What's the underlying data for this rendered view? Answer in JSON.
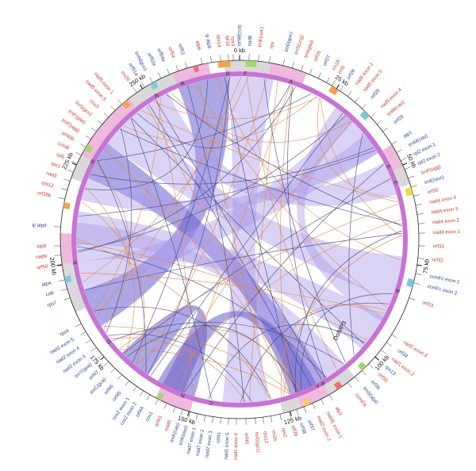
{
  "colors": {
    "plus_strand_gene": "#c0392b",
    "minus_strand_gene": "#2a3f8f",
    "backbone": "#c774d3",
    "forward_repeat": "#ad9ee8",
    "reverse_repeat": "#6a5fd0",
    "short_link_orange": "#e0874a",
    "short_link_blue": "#41467f",
    "segment_pink": "#efb9dd",
    "segment_grey": "#d9d9d9"
  },
  "scale_labels": [
    "0 kb",
    "25 kb",
    "50 kb",
    "75 kb",
    "100 kb",
    "125 kb",
    "150 kb",
    "175 kb",
    "200 kb",
    "225 kb",
    "250 kb"
  ],
  "region_labels": [
    "A",
    "B",
    "C",
    "D",
    "E",
    "F",
    "R",
    "R",
    "R",
    "R",
    "R",
    "R",
    "A",
    "E",
    "R"
  ],
  "callout": "DolMP3",
  "genes": [
    {
      "angle": 0,
      "label": "trnW(cca)",
      "color": "blue"
    },
    {
      "angle": 3,
      "label": "nad6",
      "color": "blue"
    },
    {
      "angle": 6,
      "label": "trnE(uuc)",
      "color": "red"
    },
    {
      "angle": 9.5,
      "label": "rps",
      "color": "red"
    },
    {
      "angle": 14,
      "label": "trnD(guc)",
      "color": "blue"
    },
    {
      "angle": 17,
      "label": "trnS(ucg)",
      "color": "red"
    },
    {
      "angle": 20,
      "label": "trnI(gau)",
      "color": "red"
    },
    {
      "angle": 23,
      "label": "orf26",
      "color": "red"
    },
    {
      "angle": 26,
      "label": "orf27",
      "color": "blue"
    },
    {
      "angle": 29,
      "label": "rrn18",
      "color": "red"
    },
    {
      "angle": 31,
      "label": "rrn5",
      "color": "red"
    },
    {
      "angle": 34,
      "label": "orf28",
      "color": "blue"
    },
    {
      "angle": 37,
      "label": "nad5 exon 2",
      "color": "red"
    },
    {
      "angle": 40,
      "label": "nad5 exon 3",
      "color": "red"
    },
    {
      "angle": 43,
      "label": "orf29",
      "color": "blue"
    },
    {
      "angle": 47,
      "label": "nad5 exon 4",
      "color": "red"
    },
    {
      "angle": 50,
      "label": "trnM(cau)",
      "color": "red"
    },
    {
      "angle": 53,
      "label": "orf29",
      "color": "blue"
    },
    {
      "angle": 58,
      "label": "atp1",
      "color": "blue"
    },
    {
      "angle": 61,
      "label": "trnM(cau)",
      "color": "blue"
    },
    {
      "angle": 64,
      "label": "rpl2 exon 1",
      "color": "blue"
    },
    {
      "angle": 67,
      "label": "rpl2 exon 2",
      "color": "blue"
    },
    {
      "angle": 70,
      "label": "trnP(ugg)",
      "color": "red"
    },
    {
      "angle": 73,
      "label": "trnE(uuc)",
      "color": "blue"
    },
    {
      "angle": 76,
      "label": "orf30",
      "color": "red"
    },
    {
      "angle": 79,
      "label": "nad4 exon 4",
      "color": "red"
    },
    {
      "angle": 82,
      "label": "nad4 exon 3",
      "color": "red"
    },
    {
      "angle": 85,
      "label": "nad4 exon 2",
      "color": "red"
    },
    {
      "angle": 88,
      "label": "nad4 exon 1",
      "color": "red"
    },
    {
      "angle": 92,
      "label": "orf31",
      "color": "red"
    },
    {
      "angle": 96,
      "label": "orf32",
      "color": "red"
    },
    {
      "angle": 101,
      "label": "ccmFc exon 1",
      "color": "blue"
    },
    {
      "angle": 104,
      "label": "ccmFc exon 2",
      "color": "blue"
    },
    {
      "angle": 109,
      "label": "orf33",
      "color": "red"
    },
    {
      "angle": 122,
      "label": "nad1 exon 3",
      "color": "red"
    },
    {
      "angle": 125,
      "label": "orf34",
      "color": "blue"
    },
    {
      "angle": 128,
      "label": "nad1 exon 2",
      "color": "red"
    },
    {
      "angle": 131,
      "label": "rps13",
      "color": "blue"
    },
    {
      "angle": 134,
      "label": "orf35",
      "color": "red"
    },
    {
      "angle": 137,
      "label": "orf36",
      "color": "blue"
    },
    {
      "angle": 140,
      "label": "trnS(uga)",
      "color": "blue"
    },
    {
      "angle": 143,
      "label": "ccmFN",
      "color": "red"
    },
    {
      "angle": 150,
      "label": "atp1",
      "color": "red"
    },
    {
      "angle": 153,
      "label": "nad4L exon 1",
      "color": "red"
    },
    {
      "angle": 156,
      "label": "nad2 exon 2",
      "color": "red"
    },
    {
      "angle": 159,
      "label": "orf37",
      "color": "blue"
    },
    {
      "angle": 161.5,
      "label": "orf38",
      "color": "blue"
    },
    {
      "angle": 164,
      "label": "orf39",
      "color": "red"
    },
    {
      "angle": 167,
      "label": "rps2",
      "color": "red"
    },
    {
      "angle": 170,
      "label": "rrn26",
      "color": "red"
    },
    {
      "angle": 172.5,
      "label": "rps12",
      "color": "red"
    },
    {
      "angle": 175,
      "label": "trnG(gcc)",
      "color": "red"
    },
    {
      "angle": 178,
      "label": "orf40",
      "color": "red"
    },
    {
      "angle": 181,
      "label": "nad1 exon 4",
      "color": "red"
    },
    {
      "angle": 183.5,
      "label": "nad1 exon 5",
      "color": "blue"
    },
    {
      "angle": 186,
      "label": "orf41",
      "color": "blue"
    },
    {
      "angle": 188.5,
      "label": "nad7 exon 3",
      "color": "blue"
    },
    {
      "angle": 191,
      "label": "nad7 exon 2",
      "color": "blue"
    },
    {
      "angle": 193.5,
      "label": "nad7 exon 1",
      "color": "blue"
    },
    {
      "angle": 196,
      "label": "trnK(uuu)",
      "color": "blue"
    },
    {
      "angle": 198.5,
      "label": "trnK(cau)",
      "color": "blue"
    },
    {
      "angle": 201,
      "label": "matR",
      "color": "red"
    },
    {
      "angle": 204,
      "label": "orf43",
      "color": "red"
    },
    {
      "angle": 207,
      "label": "cox1",
      "color": "blue"
    },
    {
      "angle": 210,
      "label": "orf44",
      "color": "blue"
    },
    {
      "angle": 212.5,
      "label": "cox2 exon 2",
      "color": "blue"
    },
    {
      "angle": 215,
      "label": "cox2 exon 1",
      "color": "blue"
    },
    {
      "angle": 218,
      "label": "orf45",
      "color": "blue"
    },
    {
      "angle": 221,
      "label": "orf46",
      "color": "blue"
    },
    {
      "angle": 224,
      "label": "trnC(gca)",
      "color": "blue"
    },
    {
      "angle": 227,
      "label": "orf47",
      "color": "blue"
    },
    {
      "angle": 230,
      "label": "trnY(gua)",
      "color": "blue"
    },
    {
      "angle": 233,
      "label": "nad2 exon 3",
      "color": "blue"
    },
    {
      "angle": 236,
      "label": "nad2 exon 4",
      "color": "blue"
    },
    {
      "angle": 239,
      "label": "nad2 exon 5",
      "color": "blue"
    },
    {
      "angle": 242,
      "label": "rps4",
      "color": "blue"
    },
    {
      "angle": 251,
      "label": "rps7",
      "color": "blue"
    },
    {
      "angle": 254,
      "label": "cob",
      "color": "blue"
    },
    {
      "angle": 257,
      "label": "atp4",
      "color": "blue"
    },
    {
      "angle": 262,
      "label": "orf50",
      "color": "red"
    },
    {
      "angle": 265,
      "label": "nad9",
      "color": "red"
    },
    {
      "angle": 268,
      "label": "atp8",
      "color": "red"
    },
    {
      "angle": 274,
      "label": "ψ atp9",
      "color": "blue"
    },
    {
      "angle": 283,
      "label": "orf39b",
      "color": "red"
    },
    {
      "angle": 286,
      "label": "rps12",
      "color": "red"
    },
    {
      "angle": 289,
      "label": "nad3",
      "color": "red"
    },
    {
      "angle": 292,
      "label": "rps1",
      "color": "red"
    },
    {
      "angle": 295,
      "label": "rpl5",
      "color": "red"
    },
    {
      "angle": 298,
      "label": "ccmB",
      "color": "red"
    },
    {
      "angle": 301,
      "label": "orf40b",
      "color": "red"
    },
    {
      "angle": 304,
      "label": "trnP(ugg)",
      "color": "red"
    },
    {
      "angle": 307,
      "label": "trnF(gaa)",
      "color": "red"
    },
    {
      "angle": 310,
      "label": "trnS(gcu)",
      "color": "red"
    },
    {
      "angle": 313,
      "label": "cox3",
      "color": "red"
    },
    {
      "angle": 316,
      "label": "nad5 exon 5",
      "color": "red"
    },
    {
      "angle": 319,
      "label": "nad5 exon 1",
      "color": "red"
    },
    {
      "angle": 325,
      "label": "rrn26",
      "color": "red"
    },
    {
      "angle": 328,
      "label": "orf51a",
      "color": "blue"
    },
    {
      "angle": 331,
      "label": "trnN(guu)",
      "color": "blue"
    },
    {
      "angle": 334,
      "label": "orf52a",
      "color": "blue"
    },
    {
      "angle": 337,
      "label": "orf54a",
      "color": "blue"
    },
    {
      "angle": 340,
      "label": "orf54",
      "color": "red"
    },
    {
      "angle": 343,
      "label": "orf53",
      "color": "blue"
    },
    {
      "angle": 348,
      "label": "atp6",
      "color": "red"
    },
    {
      "angle": 351,
      "label": "ψ atp9",
      "color": "blue"
    },
    {
      "angle": 354,
      "label": "rps14",
      "color": "red"
    },
    {
      "angle": 356.5,
      "label": "rpl16",
      "color": "red"
    },
    {
      "angle": 358,
      "label": "rps3",
      "color": "red"
    }
  ]
}
